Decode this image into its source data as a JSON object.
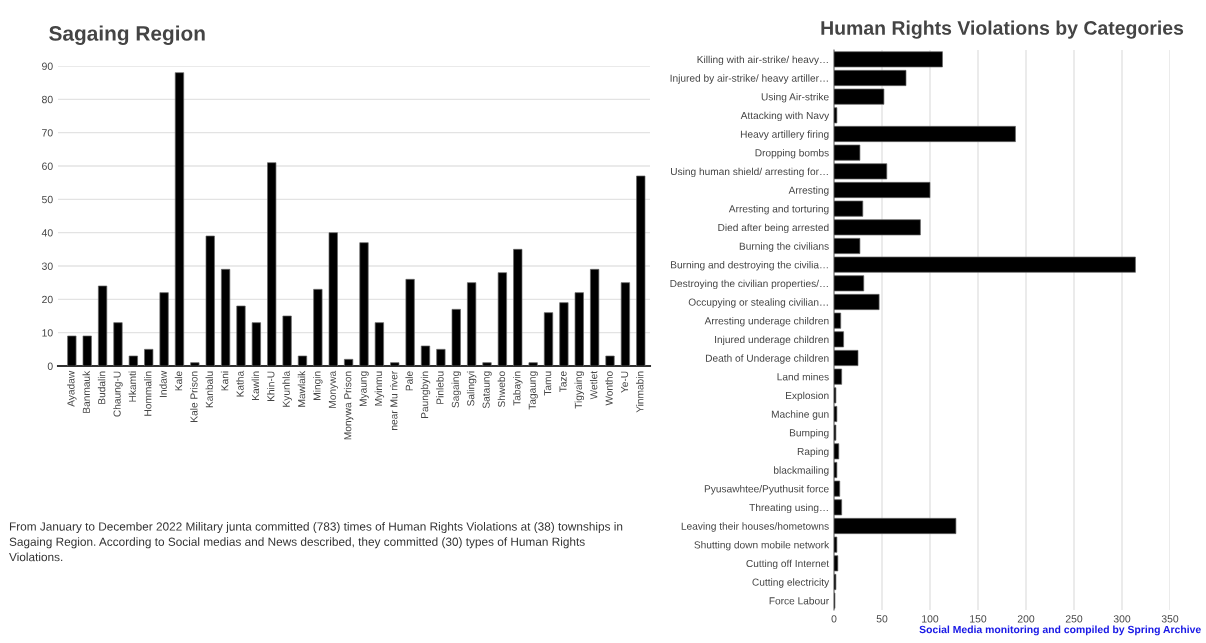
{
  "chart_data": [
    {
      "type": "bar",
      "title": "Sagaing Region",
      "categories": [
        "Ayadaw",
        "Banmauk",
        "Budalin",
        "Chaung-U",
        "Hkamti",
        "Hommalin",
        "Indaw",
        "Kale",
        "Kale Prison",
        "Kanbalu",
        "Kani",
        "Katha",
        "Kawlin",
        "Khin-U",
        "Kyunhla",
        "Mawlaik",
        "Mingin",
        "Monywa",
        "Monywa Prison",
        "Myaung",
        "Myinmu",
        "near Mu river",
        "Pale",
        "Paungbyin",
        "Pinlebu",
        "Sagaing",
        "Salingyi",
        "Sataung",
        "Shwebo",
        "Tabayin",
        "Tagaung",
        "Tamu",
        "Taze",
        "Tigyaing",
        "Wetlet",
        "Wontho",
        "Ye-U",
        "Yinmabin"
      ],
      "values": [
        9,
        9,
        24,
        13,
        3,
        5,
        22,
        88,
        1,
        39,
        29,
        18,
        13,
        61,
        15,
        3,
        23,
        40,
        2,
        37,
        13,
        1,
        26,
        6,
        5,
        17,
        25,
        1,
        28,
        35,
        1,
        16,
        19,
        22,
        29,
        3,
        25,
        57
      ],
      "color": "#000000",
      "ylim": [
        0,
        90
      ],
      "yticks": [
        0,
        10,
        20,
        30,
        40,
        50,
        60,
        70,
        80,
        90
      ],
      "grid": "y",
      "annotations": [
        "From January to December 2022 Military junta committed (783) times of Human Rights Violations at (38) townships in Sagaing Region. According to Social medias and News described, they committed (30) types of Human Rights Violations."
      ]
    },
    {
      "type": "bar",
      "orientation": "horizontal",
      "title": "Human Rights Violations by Categories",
      "categories": [
        "Killing with air-strike/ heavy…",
        "Injured by air-strike/ heavy artiller…",
        "Using Air-strike",
        "Attacking with Navy",
        "Heavy artillery firing",
        "Dropping bombs",
        "Using human shield/ arresting for…",
        "Arresting",
        "Arresting and torturing",
        "Died after being arrested",
        "Burning the civilians",
        "Burning and destroying the civilia…",
        "Destroying the civilian properties/…",
        "Occupying or stealing civilian…",
        "Arresting underage children",
        "Injured underage children",
        "Death of Underage children",
        "Land mines",
        "Explosion",
        "Machine gun",
        "Bumping",
        "Raping",
        "blackmailing",
        "Pyusawhtee/Pyuthusit force",
        "Threating using…",
        "Leaving their houses/hometowns",
        "Shutting down mobile network",
        "Cutting off Internet",
        "Cutting electricity",
        "Force Labour"
      ],
      "values": [
        113,
        75,
        52,
        3,
        189,
        27,
        55,
        100,
        30,
        90,
        27,
        314,
        31,
        47,
        7,
        10,
        25,
        8,
        2,
        3,
        2,
        5,
        3,
        6,
        8,
        127,
        3,
        4,
        2,
        1
      ],
      "color": "#000000",
      "xlim": [
        0,
        350
      ],
      "xticks": [
        0,
        50,
        100,
        150,
        200,
        250,
        300,
        350
      ],
      "grid": "x",
      "annotations": [
        "Social Media monitoring and compiled by Spring Archive"
      ]
    }
  ]
}
